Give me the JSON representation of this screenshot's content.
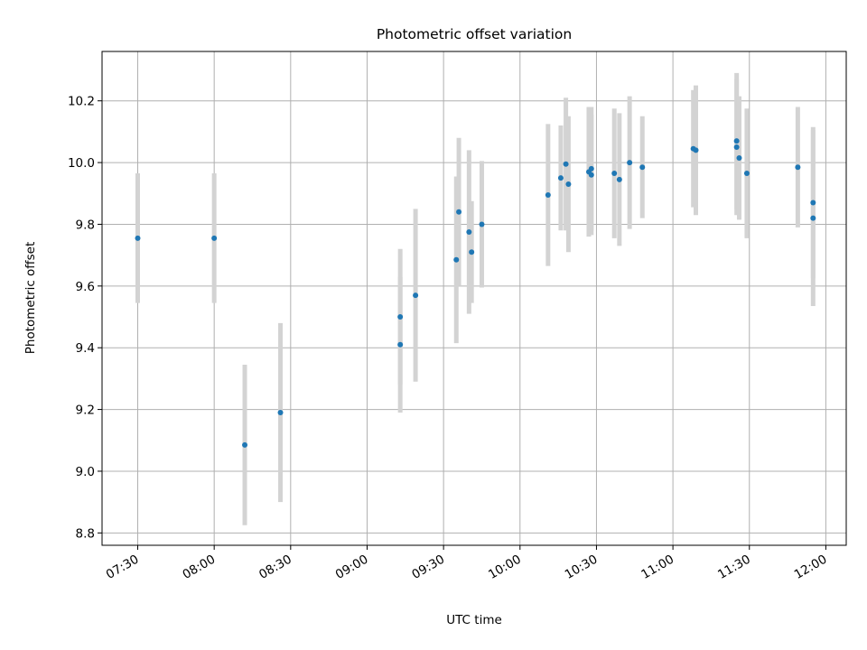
{
  "chart_data": {
    "type": "scatter",
    "title": "Photometric offset variation",
    "xlabel": "UTC time",
    "ylabel": "Photometric offset",
    "x_ticks": [
      "07:30",
      "08:00",
      "08:30",
      "09:00",
      "09:30",
      "10:00",
      "10:30",
      "11:00",
      "11:30",
      "12:00"
    ],
    "y_ticks": [
      "8.8",
      "9.0",
      "9.2",
      "9.4",
      "9.6",
      "9.8",
      "10.0",
      "10.2"
    ],
    "xlim": [
      "07:16",
      "12:08"
    ],
    "ylim": [
      8.76,
      10.36
    ],
    "grid": true,
    "marker_color": "#1f77b4",
    "errorbar_color": "#d3d3d3",
    "series": [
      {
        "points": [
          {
            "x": "07:30",
            "y": 9.755,
            "err": 0.21
          },
          {
            "x": "08:00",
            "y": 9.755,
            "err": 0.21
          },
          {
            "x": "08:12",
            "y": 9.085,
            "err": 0.26
          },
          {
            "x": "08:26",
            "y": 9.19,
            "err": 0.29
          },
          {
            "x": "09:13",
            "y": 9.5,
            "err": 0.22
          },
          {
            "x": "09:13",
            "y": 9.41,
            "err": 0.22
          },
          {
            "x": "09:19",
            "y": 9.57,
            "err": 0.28
          },
          {
            "x": "09:35",
            "y": 9.685,
            "err": 0.27
          },
          {
            "x": "09:36",
            "y": 9.84,
            "err": 0.24
          },
          {
            "x": "09:40",
            "y": 9.775,
            "err": 0.265
          },
          {
            "x": "09:41",
            "y": 9.71,
            "err": 0.165
          },
          {
            "x": "09:45",
            "y": 9.8,
            "err": 0.205
          },
          {
            "x": "10:11",
            "y": 9.895,
            "err": 0.23
          },
          {
            "x": "10:16",
            "y": 9.95,
            "err": 0.17
          },
          {
            "x": "10:18",
            "y": 9.995,
            "err": 0.215
          },
          {
            "x": "10:19",
            "y": 9.93,
            "err": 0.22
          },
          {
            "x": "10:27",
            "y": 9.97,
            "err": 0.21
          },
          {
            "x": "10:28",
            "y": 9.98,
            "err": 0.2
          },
          {
            "x": "10:28",
            "y": 9.96,
            "err": 0.195
          },
          {
            "x": "10:37",
            "y": 9.965,
            "err": 0.21
          },
          {
            "x": "10:39",
            "y": 9.945,
            "err": 0.215
          },
          {
            "x": "10:43",
            "y": 10.0,
            "err": 0.215
          },
          {
            "x": "10:48",
            "y": 9.985,
            "err": 0.165
          },
          {
            "x": "11:08",
            "y": 10.045,
            "err": 0.19
          },
          {
            "x": "11:09",
            "y": 10.04,
            "err": 0.21
          },
          {
            "x": "11:25",
            "y": 10.07,
            "err": 0.22
          },
          {
            "x": "11:25",
            "y": 10.05,
            "err": 0.22
          },
          {
            "x": "11:26",
            "y": 10.015,
            "err": 0.2
          },
          {
            "x": "11:29",
            "y": 9.965,
            "err": 0.21
          },
          {
            "x": "11:49",
            "y": 9.985,
            "err": 0.195
          },
          {
            "x": "11:55",
            "y": 9.87,
            "err": 0.245
          },
          {
            "x": "11:55",
            "y": 9.82,
            "err": 0.285
          }
        ]
      }
    ]
  }
}
